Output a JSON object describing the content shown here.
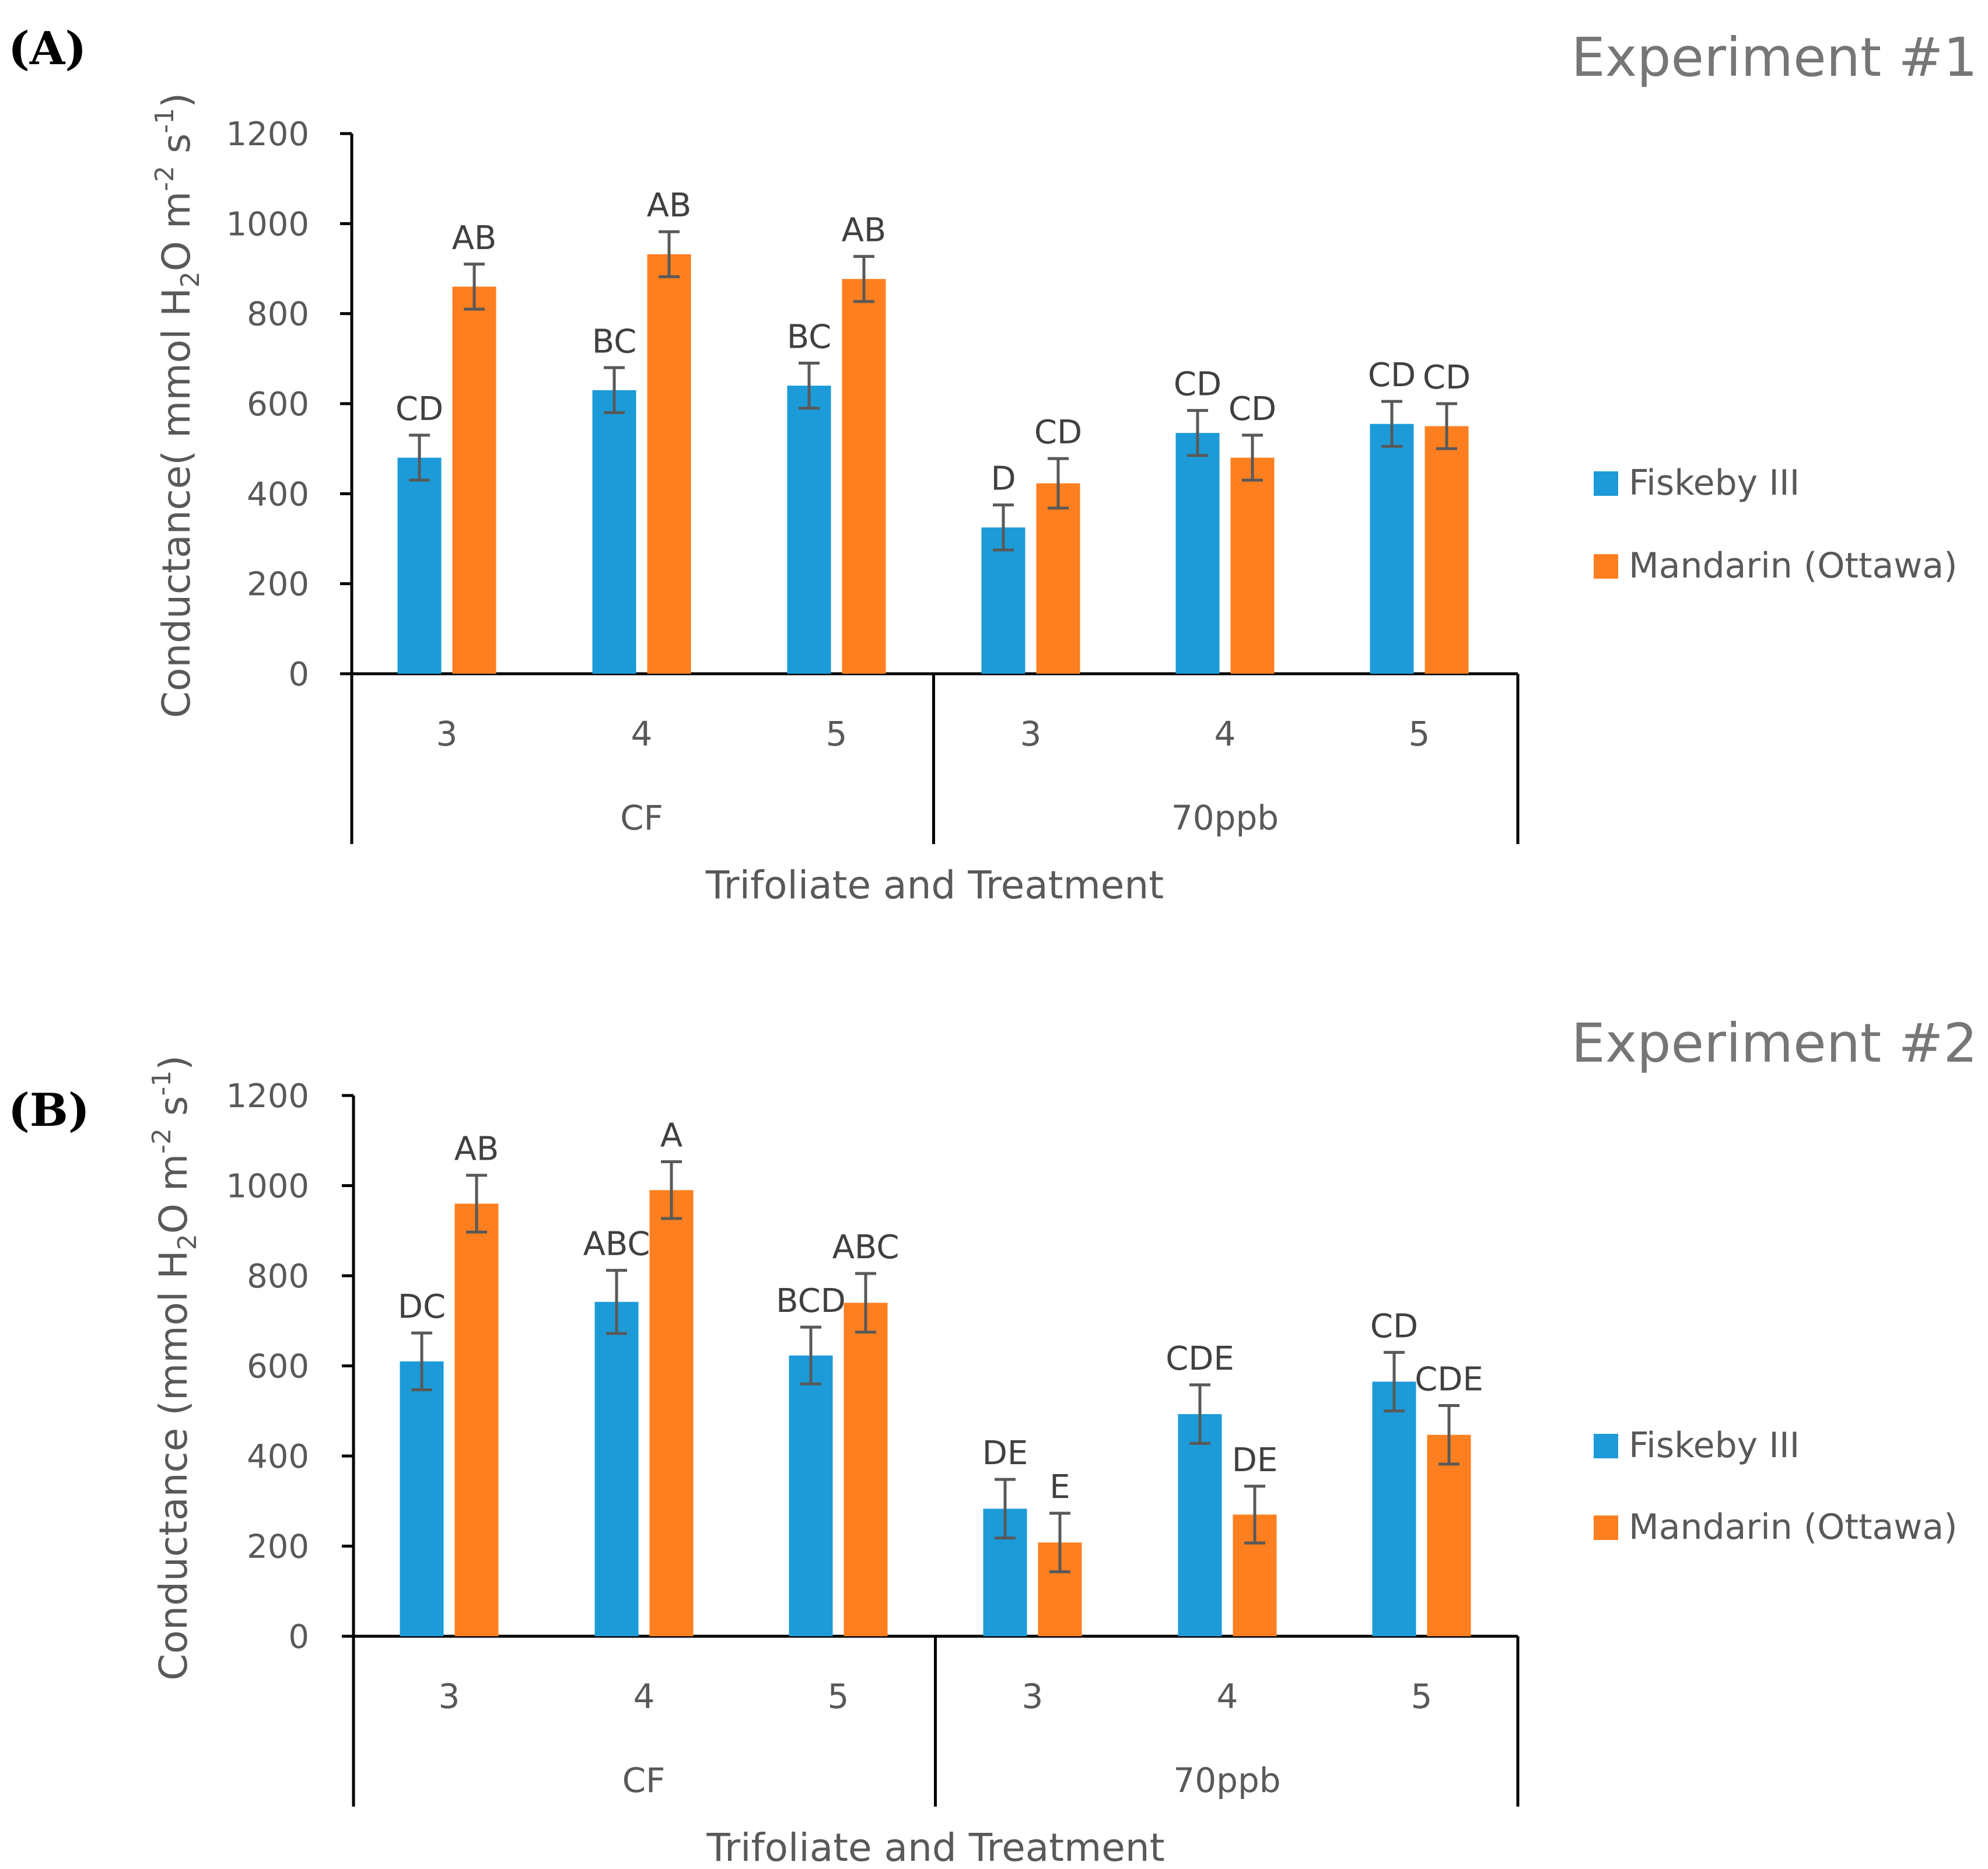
{
  "colors": {
    "fiskeby": "#1c9bd8",
    "mandarin": "#fd7f1f",
    "axis": "#000000",
    "error": "#595959"
  },
  "chart_data": [
    {
      "type": "bar",
      "panel": "(A)",
      "title": "Experiment #1",
      "xlabel": "Trifoliate and Treatment",
      "ylabel_parts": [
        "Conductance( mmol H",
        "2",
        "O m",
        "-2",
        " s",
        "-1",
        ")"
      ],
      "ylim": [
        0,
        1200
      ],
      "yticks": [
        "0",
        "200",
        "400",
        "600",
        "800",
        "1000",
        "1200"
      ],
      "groups": [
        "CF",
        "70ppb"
      ],
      "categories": [
        "3",
        "4",
        "5",
        "3",
        "4",
        "5"
      ],
      "series": [
        {
          "name": "Fiskeby III",
          "values": [
            480,
            630,
            640,
            325,
            535,
            555
          ],
          "errors": [
            50,
            50,
            50,
            50,
            50,
            50
          ],
          "labels": [
            "CD",
            "BC",
            "BC",
            "D",
            "CD",
            "CD"
          ]
        },
        {
          "name": "Mandarin (Ottawa)",
          "values": [
            860,
            932,
            877,
            423,
            480,
            550
          ],
          "errors": [
            50,
            50,
            50,
            55,
            50,
            50
          ],
          "labels": [
            "AB",
            "AB",
            "AB",
            "CD",
            "CD",
            "CD"
          ]
        }
      ]
    },
    {
      "type": "bar",
      "panel": "(B)",
      "title": "Experiment #2",
      "xlabel": "Trifoliate and Treatment",
      "ylabel_parts": [
        "Conductance (mmol H",
        "2",
        "O m",
        "-2",
        " s",
        "-1",
        ")"
      ],
      "ylim": [
        0,
        1200
      ],
      "yticks": [
        "0",
        "200",
        "400",
        "600",
        "800",
        "1000",
        "1200"
      ],
      "groups": [
        "CF",
        "70ppb"
      ],
      "categories": [
        "3",
        "4",
        "5",
        "3",
        "4",
        "5"
      ],
      "series": [
        {
          "name": "Fiskeby III",
          "values": [
            610,
            742,
            623,
            283,
            493,
            565
          ],
          "errors": [
            63,
            70,
            63,
            65,
            65,
            65
          ],
          "labels": [
            "DC",
            "ABC",
            "BCD",
            "DE",
            "CDE",
            "CD"
          ]
        },
        {
          "name": "Mandarin (Ottawa)",
          "values": [
            960,
            990,
            740,
            208,
            270,
            447
          ],
          "errors": [
            63,
            63,
            65,
            65,
            63,
            65
          ],
          "labels": [
            "AB",
            "A",
            "ABC",
            "E",
            "DE",
            "CDE"
          ]
        }
      ]
    }
  ]
}
